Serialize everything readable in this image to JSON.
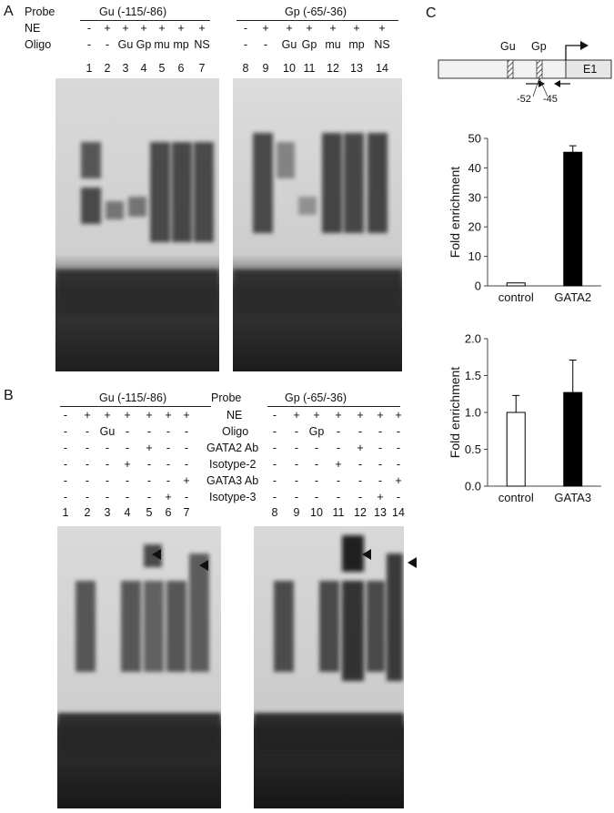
{
  "panels": [
    "A",
    "B",
    "C"
  ],
  "panel_a": {
    "probe_label": "Probe",
    "ne_label": "NE",
    "oligo_label": "Oligo",
    "group1": {
      "probe_title": "Gu (-115/-86)",
      "ne": [
        "-",
        "+",
        "+",
        "+",
        "+",
        "+",
        "+"
      ],
      "oligo": [
        "-",
        "-",
        "Gu",
        "Gp",
        "mu",
        "mp",
        "NS"
      ],
      "lanes": [
        "1",
        "2",
        "3",
        "4",
        "5",
        "6",
        "7"
      ]
    },
    "group2": {
      "probe_title": "Gp (-65/-36)",
      "ne": [
        "-",
        "+",
        "+",
        "+",
        "+",
        "+",
        "+"
      ],
      "oligo": [
        "-",
        "-",
        "Gu",
        "Gp",
        "mu",
        "mp",
        "NS"
      ],
      "lanes": [
        "8",
        "9",
        "10",
        "11",
        "12",
        "13",
        "14"
      ]
    }
  },
  "panel_b": {
    "center_labels": [
      "Probe",
      "NE",
      "Oligo",
      "GATA2 Ab",
      "Isotype-2",
      "GATA3 Ab",
      "Isotype-3"
    ],
    "group1": {
      "probe_title": "Gu (-115/-86)",
      "rows": [
        [
          "-",
          "+",
          "+",
          "+",
          "+",
          "+",
          "+"
        ],
        [
          "-",
          "-",
          "Gu",
          "-",
          "-",
          "-",
          "-"
        ],
        [
          "-",
          "-",
          "-",
          "-",
          "+",
          "-",
          "-"
        ],
        [
          "-",
          "-",
          "-",
          "+",
          "-",
          "-",
          "-"
        ],
        [
          "-",
          "-",
          "-",
          "-",
          "-",
          "-",
          "+"
        ],
        [
          "-",
          "-",
          "-",
          "-",
          "-",
          "+",
          "-"
        ]
      ],
      "lanes": [
        "1",
        "2",
        "3",
        "4",
        "5",
        "6",
        "7"
      ]
    },
    "group2": {
      "probe_title": "Gp (-65/-36)",
      "rows": [
        [
          "-",
          "+",
          "+",
          "+",
          "+",
          "+",
          "+"
        ],
        [
          "-",
          "-",
          "Gp",
          "-",
          "-",
          "-",
          "-"
        ],
        [
          "-",
          "-",
          "-",
          "-",
          "+",
          "-",
          "-"
        ],
        [
          "-",
          "-",
          "-",
          "+",
          "-",
          "-",
          "-"
        ],
        [
          "-",
          "-",
          "-",
          "-",
          "-",
          "-",
          "+"
        ],
        [
          "-",
          "-",
          "-",
          "-",
          "-",
          "+",
          "-"
        ]
      ],
      "lanes": [
        "8",
        "9",
        "10",
        "11",
        "12",
        "13",
        "14"
      ]
    }
  },
  "panel_c": {
    "diagram": {
      "gu_label": "Gu",
      "gp_label": "Gp",
      "exon_label": "E1",
      "pos1": "-52",
      "pos2": "-45"
    }
  },
  "chart_data": [
    {
      "type": "bar",
      "categories": [
        "control",
        "GATA2"
      ],
      "values": [
        1.0,
        45.3
      ],
      "error": [
        0,
        2.2
      ],
      "fill_colors": [
        "#ffffff",
        "#000000"
      ],
      "ylabel": "Fold enrichment",
      "ylim": [
        0,
        50
      ],
      "yticks": [
        "0",
        "10",
        "20",
        "30",
        "40",
        "50"
      ]
    },
    {
      "type": "bar",
      "categories": [
        "control",
        "GATA3"
      ],
      "values": [
        1.0,
        1.27
      ],
      "error": [
        0.23,
        0.44
      ],
      "fill_colors": [
        "#ffffff",
        "#000000"
      ],
      "ylabel": "Fold enrichment",
      "ylim": [
        0,
        2.0
      ],
      "yticks": [
        "0.0",
        "0.5",
        "1.0",
        "1.5",
        "2.0"
      ]
    }
  ]
}
